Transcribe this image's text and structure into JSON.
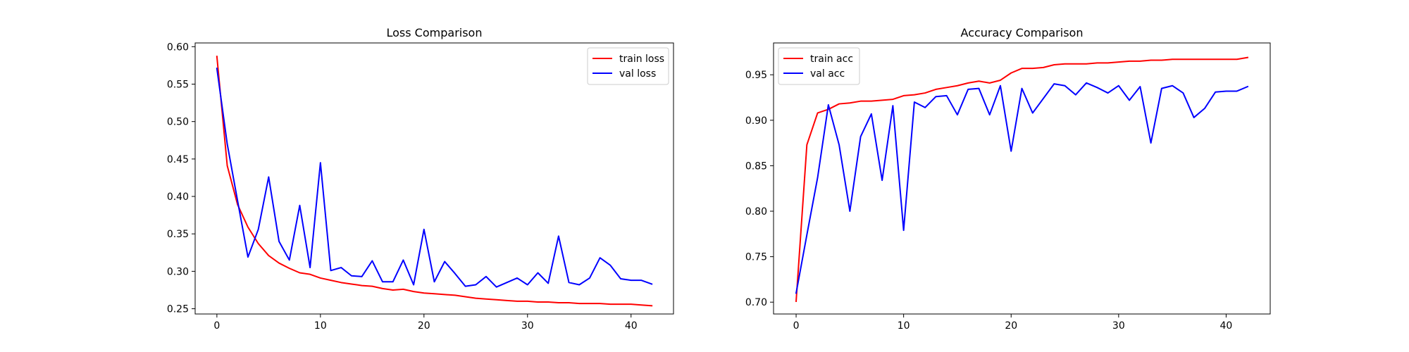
{
  "chart_data": [
    {
      "type": "line",
      "title": "Loss Comparison",
      "xlabel": "",
      "ylabel": "",
      "xlim": [
        -2.1,
        44.1
      ],
      "ylim": [
        0.243,
        0.605
      ],
      "xticks": [
        0,
        10,
        20,
        30,
        40
      ],
      "yticks": [
        0.25,
        0.3,
        0.35,
        0.4,
        0.45,
        0.5,
        0.55,
        0.6
      ],
      "ytick_decimals": 2,
      "grid": false,
      "legend_position": "top-right",
      "x": [
        0,
        1,
        2,
        3,
        4,
        5,
        6,
        7,
        8,
        9,
        10,
        11,
        12,
        13,
        14,
        15,
        16,
        17,
        18,
        19,
        20,
        21,
        22,
        23,
        24,
        25,
        26,
        27,
        28,
        29,
        30,
        31,
        32,
        33,
        34,
        35,
        36,
        37,
        38,
        39,
        40,
        41,
        42
      ],
      "series": [
        {
          "name": "train loss",
          "color": "#ff0000",
          "values": [
            0.587,
            0.441,
            0.389,
            0.359,
            0.337,
            0.321,
            0.311,
            0.304,
            0.298,
            0.296,
            0.291,
            0.288,
            0.285,
            0.283,
            0.281,
            0.28,
            0.277,
            0.275,
            0.276,
            0.273,
            0.271,
            0.27,
            0.269,
            0.268,
            0.266,
            0.264,
            0.263,
            0.262,
            0.261,
            0.26,
            0.26,
            0.259,
            0.259,
            0.258,
            0.258,
            0.257,
            0.257,
            0.257,
            0.256,
            0.256,
            0.256,
            0.255,
            0.254
          ]
        },
        {
          "name": "val loss",
          "color": "#0000ff",
          "values": [
            0.571,
            0.47,
            0.394,
            0.319,
            0.356,
            0.426,
            0.34,
            0.315,
            0.388,
            0.305,
            0.445,
            0.301,
            0.305,
            0.294,
            0.293,
            0.314,
            0.286,
            0.286,
            0.315,
            0.282,
            0.356,
            0.286,
            0.313,
            0.297,
            0.28,
            0.282,
            0.293,
            0.279,
            0.285,
            0.291,
            0.282,
            0.298,
            0.284,
            0.347,
            0.285,
            0.282,
            0.291,
            0.318,
            0.308,
            0.29,
            0.288,
            0.288,
            0.283
          ]
        }
      ]
    },
    {
      "type": "line",
      "title": "Accuracy Comparison",
      "xlabel": "",
      "ylabel": "",
      "xlim": [
        -2.1,
        44.1
      ],
      "ylim": [
        0.687,
        0.985
      ],
      "xticks": [
        0,
        10,
        20,
        30,
        40
      ],
      "yticks": [
        0.7,
        0.75,
        0.8,
        0.85,
        0.9,
        0.95
      ],
      "ytick_decimals": 2,
      "grid": false,
      "legend_position": "top-left",
      "x": [
        0,
        1,
        2,
        3,
        4,
        5,
        6,
        7,
        8,
        9,
        10,
        11,
        12,
        13,
        14,
        15,
        16,
        17,
        18,
        19,
        20,
        21,
        22,
        23,
        24,
        25,
        26,
        27,
        28,
        29,
        30,
        31,
        32,
        33,
        34,
        35,
        36,
        37,
        38,
        39,
        40,
        41,
        42
      ],
      "series": [
        {
          "name": "train acc",
          "color": "#ff0000",
          "values": [
            0.701,
            0.873,
            0.908,
            0.912,
            0.918,
            0.919,
            0.921,
            0.921,
            0.922,
            0.923,
            0.927,
            0.928,
            0.93,
            0.934,
            0.936,
            0.938,
            0.941,
            0.943,
            0.941,
            0.944,
            0.952,
            0.957,
            0.957,
            0.958,
            0.961,
            0.962,
            0.962,
            0.962,
            0.963,
            0.963,
            0.964,
            0.965,
            0.965,
            0.966,
            0.966,
            0.967,
            0.967,
            0.967,
            0.967,
            0.967,
            0.967,
            0.967,
            0.969
          ]
        },
        {
          "name": "val acc",
          "color": "#0000ff",
          "values": [
            0.71,
            0.774,
            0.837,
            0.917,
            0.873,
            0.8,
            0.882,
            0.907,
            0.834,
            0.916,
            0.779,
            0.92,
            0.914,
            0.926,
            0.927,
            0.906,
            0.934,
            0.935,
            0.906,
            0.938,
            0.866,
            0.935,
            0.908,
            0.924,
            0.94,
            0.938,
            0.928,
            0.941,
            0.936,
            0.93,
            0.938,
            0.922,
            0.937,
            0.875,
            0.935,
            0.938,
            0.93,
            0.903,
            0.913,
            0.931,
            0.932,
            0.932,
            0.937
          ]
        }
      ]
    }
  ]
}
